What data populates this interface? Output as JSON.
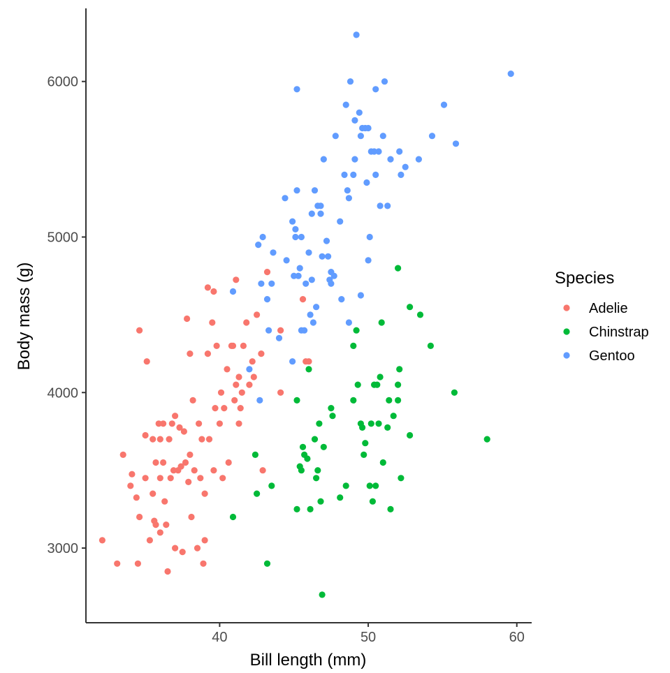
{
  "chart_data": {
    "type": "scatter",
    "xlabel": "Bill length (mm)",
    "ylabel": "Body mass (g)",
    "xlim": [
      31,
      61
    ],
    "ylim": [
      2520,
      6470
    ],
    "x_ticks": [
      40,
      50,
      60
    ],
    "y_ticks": [
      3000,
      4000,
      5000,
      6000
    ],
    "grid": false,
    "legend": {
      "title": "Species",
      "position": "right"
    },
    "series": [
      {
        "name": "Adelie",
        "color": "#F8766D",
        "points": [
          [
            32.1,
            3050
          ],
          [
            33.1,
            2900
          ],
          [
            33.5,
            3600
          ],
          [
            34.0,
            3400
          ],
          [
            34.1,
            3475
          ],
          [
            34.4,
            3325
          ],
          [
            34.5,
            2900
          ],
          [
            34.6,
            4400
          ],
          [
            34.6,
            3200
          ],
          [
            35.0,
            3450
          ],
          [
            35.1,
            4200
          ],
          [
            35.0,
            3725
          ],
          [
            35.3,
            3050
          ],
          [
            35.5,
            3700
          ],
          [
            35.5,
            3350
          ],
          [
            35.6,
            3175
          ],
          [
            35.7,
            3150
          ],
          [
            35.7,
            3550
          ],
          [
            35.9,
            3800
          ],
          [
            36.0,
            3450
          ],
          [
            36.0,
            3100
          ],
          [
            36.2,
            3800
          ],
          [
            36.2,
            3550
          ],
          [
            36.3,
            3300
          ],
          [
            36.4,
            3150
          ],
          [
            36.5,
            2850
          ],
          [
            36.6,
            3700
          ],
          [
            36.7,
            3450
          ],
          [
            36.8,
            3800
          ],
          [
            36.9,
            3500
          ],
          [
            37.0,
            3000
          ],
          [
            37.2,
            3500
          ],
          [
            37.3,
            3775
          ],
          [
            37.4,
            3525
          ],
          [
            37.5,
            2975
          ],
          [
            37.6,
            3750
          ],
          [
            37.7,
            3550
          ],
          [
            37.8,
            4475
          ],
          [
            37.9,
            3425
          ],
          [
            38.0,
            4250
          ],
          [
            38.1,
            3200
          ],
          [
            38.2,
            3950
          ],
          [
            38.3,
            3500
          ],
          [
            38.5,
            3000
          ],
          [
            38.6,
            3800
          ],
          [
            38.7,
            3450
          ],
          [
            38.8,
            3700
          ],
          [
            38.9,
            2900
          ],
          [
            39.0,
            3050
          ],
          [
            39.2,
            4250
          ],
          [
            39.2,
            4675
          ],
          [
            39.3,
            3700
          ],
          [
            39.5,
            4450
          ],
          [
            39.6,
            3500
          ],
          [
            39.6,
            4650
          ],
          [
            39.7,
            3900
          ],
          [
            39.8,
            4300
          ],
          [
            40.1,
            4000
          ],
          [
            40.2,
            3450
          ],
          [
            40.3,
            3900
          ],
          [
            40.5,
            4150
          ],
          [
            40.6,
            3550
          ],
          [
            40.8,
            4300
          ],
          [
            40.9,
            4300
          ],
          [
            41.0,
            3950
          ],
          [
            41.1,
            4725
          ],
          [
            41.1,
            4050
          ],
          [
            41.3,
            4100
          ],
          [
            41.4,
            3900
          ],
          [
            41.5,
            4000
          ],
          [
            41.6,
            4300
          ],
          [
            41.8,
            4450
          ],
          [
            42.0,
            4050
          ],
          [
            42.2,
            4200
          ],
          [
            42.3,
            4100
          ],
          [
            42.5,
            4500
          ],
          [
            42.8,
            4250
          ],
          [
            42.9,
            3500
          ],
          [
            43.2,
            4775
          ],
          [
            44.1,
            4000
          ],
          [
            44.1,
            4400
          ],
          [
            45.6,
            4600
          ],
          [
            45.8,
            4200
          ],
          [
            46.0,
            4200
          ],
          [
            41.3,
            3800
          ],
          [
            40.0,
            3800
          ],
          [
            39.0,
            3350
          ],
          [
            38.0,
            3600
          ],
          [
            37.0,
            3850
          ],
          [
            36.0,
            3700
          ]
        ]
      },
      {
        "name": "Chinstrap",
        "color": "#00BA38",
        "points": [
          [
            40.9,
            3200
          ],
          [
            42.4,
            3600
          ],
          [
            42.5,
            3350
          ],
          [
            43.2,
            2900
          ],
          [
            43.5,
            3400
          ],
          [
            45.2,
            3250
          ],
          [
            45.2,
            3950
          ],
          [
            45.4,
            3525
          ],
          [
            45.5,
            3500
          ],
          [
            45.6,
            3650
          ],
          [
            45.7,
            3600
          ],
          [
            45.9,
            3575
          ],
          [
            46.0,
            4150
          ],
          [
            46.1,
            3250
          ],
          [
            46.4,
            3700
          ],
          [
            46.5,
            3450
          ],
          [
            46.6,
            3500
          ],
          [
            46.7,
            3800
          ],
          [
            46.8,
            3300
          ],
          [
            46.9,
            2700
          ],
          [
            47.0,
            3650
          ],
          [
            47.5,
            3900
          ],
          [
            47.6,
            3850
          ],
          [
            48.1,
            3325
          ],
          [
            48.5,
            3400
          ],
          [
            49.0,
            3950
          ],
          [
            49.0,
            4300
          ],
          [
            49.2,
            4400
          ],
          [
            49.3,
            4050
          ],
          [
            49.5,
            3800
          ],
          [
            49.6,
            3775
          ],
          [
            49.7,
            3600
          ],
          [
            49.8,
            3675
          ],
          [
            50.1,
            3400
          ],
          [
            50.2,
            3800
          ],
          [
            50.3,
            3300
          ],
          [
            50.5,
            3400
          ],
          [
            50.6,
            4050
          ],
          [
            50.7,
            3800
          ],
          [
            50.8,
            4100
          ],
          [
            50.9,
            4450
          ],
          [
            51.0,
            3550
          ],
          [
            51.3,
            3775
          ],
          [
            51.4,
            3950
          ],
          [
            51.5,
            3250
          ],
          [
            51.7,
            3850
          ],
          [
            52.0,
            3950
          ],
          [
            52.0,
            4050
          ],
          [
            52.1,
            4150
          ],
          [
            52.2,
            3450
          ],
          [
            52.8,
            3725
          ],
          [
            52.8,
            4550
          ],
          [
            53.5,
            4500
          ],
          [
            54.2,
            4300
          ],
          [
            55.8,
            4000
          ],
          [
            58.0,
            3700
          ],
          [
            52.0,
            4800
          ],
          [
            50.4,
            4050
          ]
        ]
      },
      {
        "name": "Gentoo",
        "color": "#619CFF",
        "points": [
          [
            40.9,
            4650
          ],
          [
            42.0,
            4150
          ],
          [
            42.7,
            3950
          ],
          [
            42.6,
            4950
          ],
          [
            42.8,
            4700
          ],
          [
            42.9,
            5000
          ],
          [
            43.2,
            4600
          ],
          [
            43.3,
            4400
          ],
          [
            43.5,
            4700
          ],
          [
            43.6,
            4900
          ],
          [
            44.0,
            4350
          ],
          [
            44.4,
            5250
          ],
          [
            44.5,
            4850
          ],
          [
            44.9,
            5100
          ],
          [
            45.0,
            4750
          ],
          [
            45.1,
            5000
          ],
          [
            45.2,
            5300
          ],
          [
            45.2,
            5950
          ],
          [
            45.3,
            4750
          ],
          [
            45.4,
            4800
          ],
          [
            45.5,
            5000
          ],
          [
            45.7,
            4400
          ],
          [
            46.1,
            4500
          ],
          [
            46.2,
            4725
          ],
          [
            46.4,
            5300
          ],
          [
            46.5,
            4550
          ],
          [
            46.6,
            5200
          ],
          [
            46.8,
            5200
          ],
          [
            46.9,
            4875
          ],
          [
            47.2,
            4975
          ],
          [
            47.3,
            4875
          ],
          [
            47.5,
            4700
          ],
          [
            47.7,
            4750
          ],
          [
            47.8,
            5650
          ],
          [
            48.1,
            5100
          ],
          [
            48.4,
            5400
          ],
          [
            48.5,
            5850
          ],
          [
            48.7,
            5250
          ],
          [
            48.8,
            6000
          ],
          [
            49.1,
            5500
          ],
          [
            49.2,
            6300
          ],
          [
            49.4,
            5800
          ],
          [
            49.5,
            5650
          ],
          [
            49.6,
            5700
          ],
          [
            49.8,
            5700
          ],
          [
            50.0,
            5700
          ],
          [
            50.1,
            5000
          ],
          [
            50.2,
            5550
          ],
          [
            50.4,
            5550
          ],
          [
            50.5,
            5400
          ],
          [
            50.7,
            5550
          ],
          [
            50.8,
            5200
          ],
          [
            51.1,
            6000
          ],
          [
            51.3,
            5200
          ],
          [
            51.5,
            5500
          ],
          [
            52.1,
            5550
          ],
          [
            52.2,
            5400
          ],
          [
            52.5,
            5450
          ],
          [
            53.4,
            5500
          ],
          [
            54.3,
            5650
          ],
          [
            55.1,
            5850
          ],
          [
            55.9,
            5600
          ],
          [
            59.6,
            6050
          ],
          [
            47.0,
            5500
          ],
          [
            46.2,
            5150
          ],
          [
            45.1,
            5050
          ],
          [
            48.2,
            4600
          ],
          [
            47.5,
            4775
          ],
          [
            46.3,
            4450
          ],
          [
            48.7,
            4450
          ],
          [
            44.9,
            4200
          ],
          [
            45.5,
            4400
          ],
          [
            49.5,
            4625
          ],
          [
            50.0,
            4850
          ],
          [
            49.0,
            5400
          ],
          [
            47.4,
            4725
          ],
          [
            46.8,
            5150
          ],
          [
            45.8,
            4700
          ],
          [
            46.0,
            4900
          ],
          [
            49.9,
            5350
          ],
          [
            51.0,
            5650
          ],
          [
            50.5,
            5950
          ],
          [
            49.1,
            5750
          ],
          [
            48.6,
            5300
          ]
        ]
      }
    ]
  }
}
